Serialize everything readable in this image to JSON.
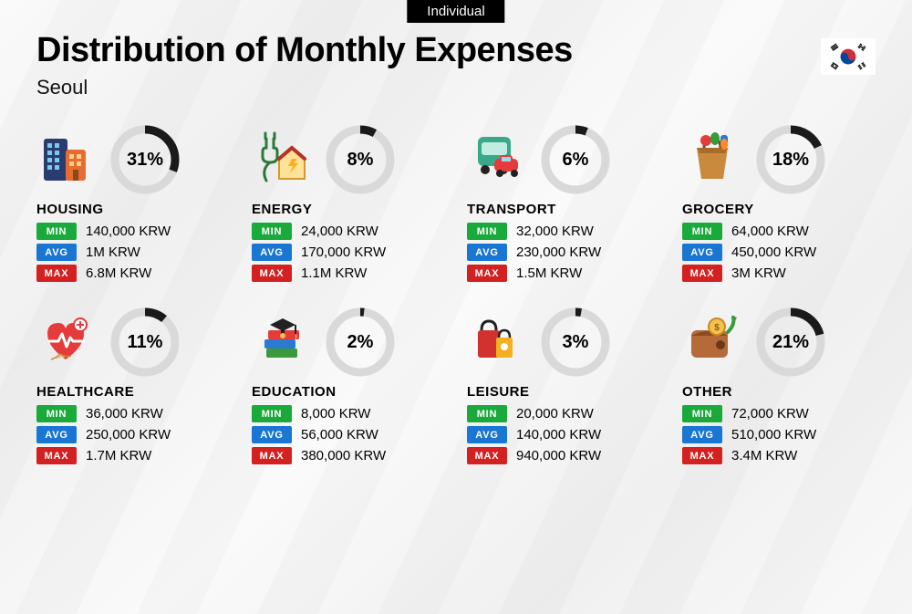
{
  "badge": "Individual",
  "title": "Distribution of Monthly Expenses",
  "subtitle": "Seoul",
  "labels": {
    "min": "MIN",
    "avg": "AVG",
    "max": "MAX"
  },
  "colors": {
    "min_badge": "#1aaa3c",
    "avg_badge": "#1976d2",
    "max_badge": "#d32020",
    "donut_fg": "#1a1a1a",
    "donut_bg": "#d9d9d9",
    "background": "#fafafa",
    "text": "#000000"
  },
  "donut": {
    "radius": 33,
    "stroke_width": 9
  },
  "categories": [
    {
      "name": "HOUSING",
      "icon": "housing",
      "percent": 31,
      "min": "140,000 KRW",
      "avg": "1M KRW",
      "max": "6.8M KRW"
    },
    {
      "name": "ENERGY",
      "icon": "energy",
      "percent": 8,
      "min": "24,000 KRW",
      "avg": "170,000 KRW",
      "max": "1.1M KRW"
    },
    {
      "name": "TRANSPORT",
      "icon": "transport",
      "percent": 6,
      "min": "32,000 KRW",
      "avg": "230,000 KRW",
      "max": "1.5M KRW"
    },
    {
      "name": "GROCERY",
      "icon": "grocery",
      "percent": 18,
      "min": "64,000 KRW",
      "avg": "450,000 KRW",
      "max": "3M KRW"
    },
    {
      "name": "HEALTHCARE",
      "icon": "healthcare",
      "percent": 11,
      "min": "36,000 KRW",
      "avg": "250,000 KRW",
      "max": "1.7M KRW"
    },
    {
      "name": "EDUCATION",
      "icon": "education",
      "percent": 2,
      "min": "8,000 KRW",
      "avg": "56,000 KRW",
      "max": "380,000 KRW"
    },
    {
      "name": "LEISURE",
      "icon": "leisure",
      "percent": 3,
      "min": "20,000 KRW",
      "avg": "140,000 KRW",
      "max": "940,000 KRW"
    },
    {
      "name": "OTHER",
      "icon": "other",
      "percent": 21,
      "min": "72,000 KRW",
      "avg": "510,000 KRW",
      "max": "3.4M KRW"
    }
  ]
}
